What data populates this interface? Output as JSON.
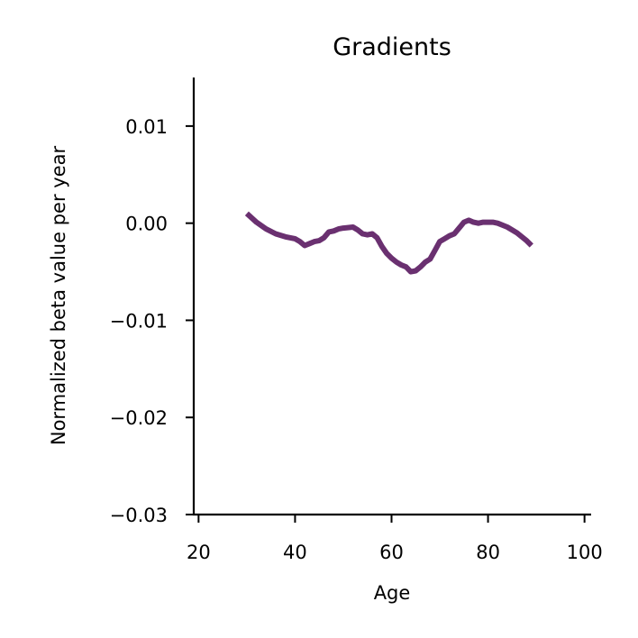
{
  "chart_data": {
    "type": "line",
    "title": "Gradients",
    "xlabel": "Age",
    "ylabel": "Normalized beta value per year",
    "xlim": [
      19,
      101
    ],
    "ylim": [
      -0.03,
      0.015
    ],
    "x_ticks": [
      20,
      40,
      60,
      80,
      100
    ],
    "x_tick_labels": [
      "20",
      "40",
      "60",
      "80",
      "100"
    ],
    "y_ticks": [
      0.01,
      0.0,
      -0.01,
      -0.02,
      -0.03
    ],
    "y_tick_labels": [
      "0.01",
      "0.00",
      "−0.01",
      "−0.02",
      "−0.03"
    ],
    "grid": false,
    "line_color": "#6a3070",
    "series": [
      {
        "x": [
          30.0,
          32.0,
          34.0,
          36.0,
          38.0,
          40.0,
          41.0,
          42.0,
          43.0,
          44.0,
          45.0,
          46.0,
          47.0,
          48.0,
          49.0,
          50.0,
          52.0,
          53.0,
          54.0,
          55.0,
          56.0,
          57.0,
          58.0,
          59.0,
          60.0,
          61.0,
          62.0,
          63.0,
          64.0,
          65.0,
          66.0,
          67.0,
          68.0,
          69.0,
          70.0,
          71.0,
          72.0,
          73.0,
          74.0,
          75.0,
          76.0,
          77.0,
          78.0,
          79.0,
          80.0,
          81.0,
          82.0,
          84.0,
          86.0,
          88.0,
          89.0
        ],
        "y": [
          0.001,
          0.0001,
          -0.0006,
          -0.0011,
          -0.0014,
          -0.0016,
          -0.0019,
          -0.0023,
          -0.0021,
          -0.0019,
          -0.0018,
          -0.0015,
          -0.0009,
          -0.0008,
          -0.0006,
          -0.0005,
          -0.0004,
          -0.0007,
          -0.0011,
          -0.0012,
          -0.0011,
          -0.0015,
          -0.0024,
          -0.0031,
          -0.0036,
          -0.004,
          -0.0043,
          -0.0045,
          -0.005,
          -0.0049,
          -0.0045,
          -0.004,
          -0.0037,
          -0.0028,
          -0.0019,
          -0.0016,
          -0.0013,
          -0.0011,
          -0.0005,
          0.0001,
          0.0003,
          0.0001,
          0.0,
          0.0001,
          0.0001,
          0.0001,
          0.0,
          -0.0004,
          -0.001,
          -0.0018,
          -0.0023
        ]
      }
    ]
  }
}
